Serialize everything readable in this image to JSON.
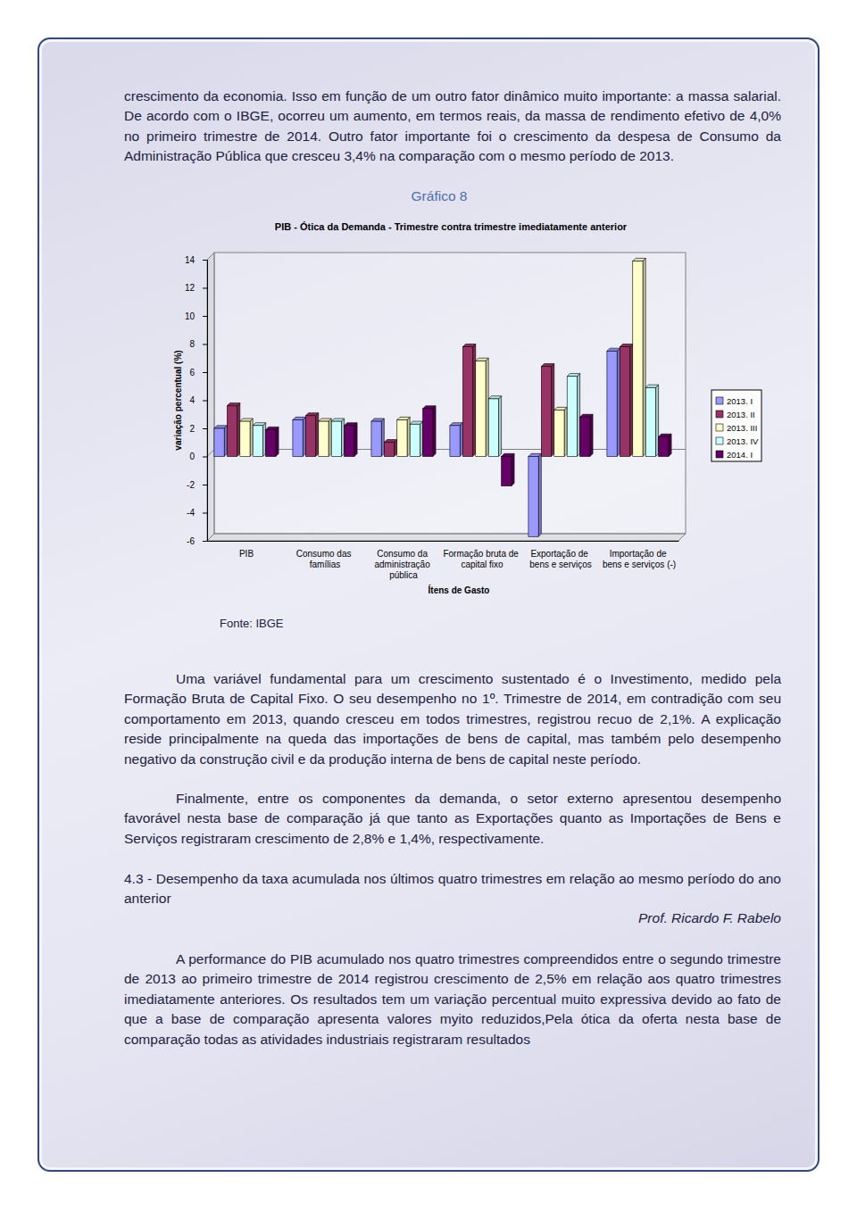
{
  "page": {
    "intro": "crescimento da economia. Isso em função de um outro fator dinâmico muito importante: a massa salarial. De acordo com o IBGE, ocorreu um aumento, em termos reais, da massa de rendimento efetivo de 4,0% no primeiro trimestre de 2014. Outro fator importante foi o crescimento da despesa de Consumo da Administração Pública que cresceu 3,4% na comparação com o mesmo período de 2013.",
    "caption": "Gráfico 8",
    "source": "Fonte: IBGE",
    "paragraphs": [
      "Uma variável fundamental para um crescimento sustentado é o Investimento, medido pela Formação Bruta de Capital Fixo. O seu desempenho no 1º. Trimestre de 2014, em contradição com seu comportamento em 2013, quando cresceu em todos trimestres, registrou recuo de 2,1%. A explicação reside principalmente na queda das importações de bens de capital, mas também pelo desempenho negativo da construção civil e da produção interna de bens de capital neste período.",
      "Finalmente, entre os componentes da demanda, o setor externo apresentou desempenho favorável nesta base de comparação já que tanto as Exportações quanto as Importações de Bens e Serviços registraram crescimento de 2,8% e 1,4%, respectivamente."
    ],
    "section_heading": "4.3 - Desempenho da taxa acumulada nos últimos quatro trimestres em relação ao mesmo período do ano anterior",
    "author": "Prof. Ricardo F. Rabelo",
    "closing": "A performance do PIB acumulado nos quatro trimestres compreendidos entre o segundo trimestre de 2013 ao primeiro trimestre de 2014 registrou crescimento de 2,5% em relação aos quatro trimestres imediatamente anteriores. Os resultados tem um variação percentual muito expressiva devido ao fato de que a base de comparação apresenta valores myito reduzidos,Pela ótica da oferta nesta base de comparação todas as atividades industriais registraram resultados"
  },
  "chart_data": {
    "type": "bar",
    "title": "PIB - Ótica da Demanda - Trimestre contra trimestre imediatamente anterior",
    "x_label": "Ítens de Gasto",
    "y_label": "variação percentual (%)",
    "categories": [
      "PIB",
      "Consumo das famílias",
      "Consumo da administração pública",
      "Formação bruta de capital fixo",
      "Exportação de bens e serviços",
      "Importação de bens e serviços (-)"
    ],
    "series": [
      {
        "name": "2013. I",
        "color": "#9999ff",
        "values": [
          2.0,
          2.6,
          2.5,
          2.2,
          -5.7,
          7.5
        ]
      },
      {
        "name": "2013. II",
        "color": "#993366",
        "values": [
          3.6,
          2.9,
          1.0,
          7.8,
          6.4,
          7.8
        ]
      },
      {
        "name": "2013. III",
        "color": "#ffffcc",
        "values": [
          2.5,
          2.5,
          2.6,
          6.8,
          3.3,
          13.9
        ]
      },
      {
        "name": "2013. IV",
        "color": "#ccffff",
        "values": [
          2.2,
          2.5,
          2.3,
          4.1,
          5.7,
          4.9
        ]
      },
      {
        "name": "2014. I",
        "color": "#660066",
        "values": [
          1.9,
          2.2,
          3.4,
          -2.1,
          2.8,
          1.4
        ]
      }
    ],
    "ylim": [
      -6,
      14
    ],
    "yticks": [
      -6,
      -4,
      -2,
      0,
      2,
      4,
      6,
      8,
      10,
      12,
      14
    ],
    "grid": false,
    "legend": "right"
  }
}
